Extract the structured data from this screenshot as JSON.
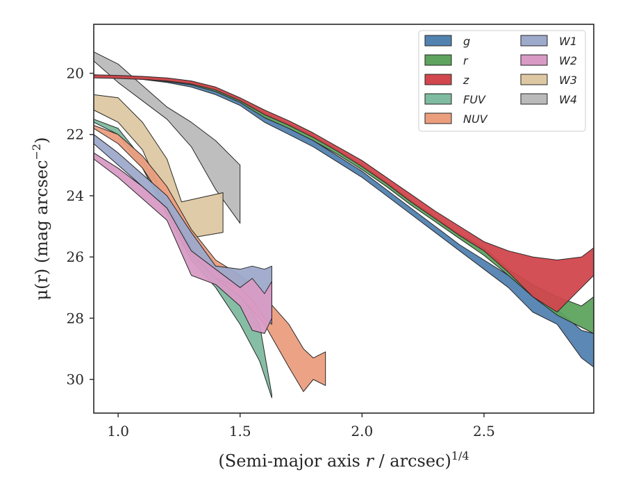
{
  "chart_data": {
    "type": "area",
    "title": "",
    "xlabel": "(Semi-major axis ",
    "xlabel_var": "r",
    "xlabel_mid": " / arcsec)",
    "xlabel_sup": "1/4",
    "ylabel": "μ(r) (mag arcsec",
    "ylabel_sup": "−2",
    "ylabel_end": ")",
    "xlim": [
      0.9,
      2.95
    ],
    "ylim": [
      31.1,
      18.4
    ],
    "y_inverted": true,
    "xticks": [
      1.0,
      1.5,
      2.0,
      2.5
    ],
    "xtick_labels": [
      "1.0",
      "1.5",
      "2.0",
      "2.5"
    ],
    "yticks": [
      20,
      22,
      24,
      26,
      28,
      30
    ],
    "ytick_labels": [
      "20",
      "22",
      "24",
      "26",
      "28",
      "30"
    ],
    "grid": false,
    "legend": {
      "position": "top-right",
      "columns": 2
    },
    "series": [
      {
        "name": "W4",
        "color": "#bababa",
        "upper": [
          [
            0.9,
            19.3
          ],
          [
            1.0,
            19.7
          ],
          [
            1.1,
            20.4
          ],
          [
            1.2,
            21.1
          ],
          [
            1.3,
            21.6
          ],
          [
            1.4,
            22.2
          ],
          [
            1.5,
            23.0
          ]
        ],
        "lower": [
          [
            0.9,
            19.6
          ],
          [
            1.0,
            20.3
          ],
          [
            1.1,
            20.9
          ],
          [
            1.2,
            21.5
          ],
          [
            1.3,
            22.4
          ],
          [
            1.4,
            23.8
          ],
          [
            1.5,
            24.9
          ]
        ]
      },
      {
        "name": "W3",
        "color": "#dec8a3",
        "upper": [
          [
            0.9,
            20.7
          ],
          [
            1.0,
            20.8
          ],
          [
            1.1,
            21.6
          ],
          [
            1.2,
            22.8
          ],
          [
            1.26,
            24.2
          ],
          [
            1.43,
            23.9
          ]
        ],
        "lower": [
          [
            0.9,
            21.2
          ],
          [
            1.0,
            21.6
          ],
          [
            1.1,
            22.5
          ],
          [
            1.2,
            24.3
          ],
          [
            1.28,
            25.4
          ],
          [
            1.43,
            25.2
          ]
        ]
      },
      {
        "name": "FUV",
        "color": "#7fbba0",
        "upper": [
          [
            0.9,
            21.5
          ],
          [
            1.0,
            21.8
          ],
          [
            1.1,
            22.8
          ],
          [
            1.2,
            24.2
          ],
          [
            1.3,
            25.6
          ],
          [
            1.4,
            26.3
          ],
          [
            1.5,
            27.2
          ],
          [
            1.58,
            28.2
          ],
          [
            1.63,
            30.5
          ]
        ],
        "lower": [
          [
            0.9,
            21.6
          ],
          [
            1.0,
            22.0
          ],
          [
            1.1,
            23.1
          ],
          [
            1.2,
            24.6
          ],
          [
            1.3,
            26.1
          ],
          [
            1.4,
            27.0
          ],
          [
            1.5,
            28.2
          ],
          [
            1.58,
            29.4
          ],
          [
            1.63,
            30.6
          ]
        ]
      },
      {
        "name": "NUV",
        "color": "#eb9e7e",
        "upper": [
          [
            0.9,
            21.7
          ],
          [
            1.0,
            22.0
          ],
          [
            1.1,
            22.7
          ],
          [
            1.2,
            23.7
          ],
          [
            1.3,
            25.1
          ],
          [
            1.4,
            26.1
          ],
          [
            1.5,
            26.6
          ],
          [
            1.6,
            27.3
          ],
          [
            1.7,
            28.2
          ],
          [
            1.76,
            29.0
          ],
          [
            1.8,
            29.3
          ],
          [
            1.85,
            29.1
          ]
        ],
        "lower": [
          [
            0.9,
            21.8
          ],
          [
            1.0,
            22.3
          ],
          [
            1.1,
            23.1
          ],
          [
            1.2,
            24.3
          ],
          [
            1.3,
            25.7
          ],
          [
            1.4,
            26.7
          ],
          [
            1.5,
            27.3
          ],
          [
            1.6,
            28.2
          ],
          [
            1.7,
            29.6
          ],
          [
            1.76,
            30.4
          ],
          [
            1.8,
            30.0
          ],
          [
            1.85,
            30.2
          ]
        ]
      },
      {
        "name": "W1",
        "color": "#9eaacb",
        "upper": [
          [
            0.9,
            22.0
          ],
          [
            1.0,
            22.6
          ],
          [
            1.1,
            23.3
          ],
          [
            1.2,
            24.0
          ],
          [
            1.3,
            25.2
          ],
          [
            1.4,
            26.3
          ],
          [
            1.5,
            26.4
          ],
          [
            1.55,
            26.3
          ],
          [
            1.6,
            26.4
          ],
          [
            1.63,
            26.3
          ]
        ],
        "lower": [
          [
            0.9,
            22.3
          ],
          [
            1.0,
            23.0
          ],
          [
            1.1,
            23.7
          ],
          [
            1.2,
            24.4
          ],
          [
            1.3,
            25.9
          ],
          [
            1.4,
            26.7
          ],
          [
            1.5,
            27.0
          ],
          [
            1.55,
            27.4
          ],
          [
            1.6,
            28.0
          ],
          [
            1.63,
            28.2
          ]
        ]
      },
      {
        "name": "W2",
        "color": "#d89bc5",
        "upper": [
          [
            0.9,
            22.6
          ],
          [
            1.0,
            23.1
          ],
          [
            1.1,
            23.7
          ],
          [
            1.2,
            24.4
          ],
          [
            1.3,
            25.8
          ],
          [
            1.4,
            26.4
          ],
          [
            1.5,
            27.0
          ],
          [
            1.55,
            26.7
          ],
          [
            1.6,
            27.2
          ],
          [
            1.63,
            26.8
          ]
        ],
        "lower": [
          [
            0.9,
            22.8
          ],
          [
            1.0,
            23.4
          ],
          [
            1.1,
            24.1
          ],
          [
            1.2,
            24.8
          ],
          [
            1.3,
            26.6
          ],
          [
            1.4,
            26.9
          ],
          [
            1.5,
            27.6
          ],
          [
            1.55,
            28.4
          ],
          [
            1.6,
            28.5
          ],
          [
            1.63,
            28.0
          ]
        ]
      },
      {
        "name": "g",
        "color": "#5282b0",
        "upper": [
          [
            0.9,
            20.05
          ],
          [
            1.0,
            20.1
          ],
          [
            1.1,
            20.15
          ],
          [
            1.2,
            20.2
          ],
          [
            1.3,
            20.3
          ],
          [
            1.4,
            20.55
          ],
          [
            1.5,
            20.9
          ],
          [
            1.6,
            21.4
          ],
          [
            1.7,
            21.8
          ],
          [
            1.8,
            22.2
          ],
          [
            1.9,
            22.7
          ],
          [
            2.0,
            23.2
          ],
          [
            2.1,
            23.8
          ],
          [
            2.2,
            24.4
          ],
          [
            2.3,
            25.0
          ],
          [
            2.4,
            25.6
          ],
          [
            2.5,
            26.1
          ],
          [
            2.6,
            26.6
          ],
          [
            2.7,
            27.2
          ],
          [
            2.8,
            27.7
          ],
          [
            2.9,
            28.4
          ],
          [
            2.95,
            28.5
          ]
        ],
        "lower": [
          [
            0.9,
            20.1
          ],
          [
            1.0,
            20.15
          ],
          [
            1.1,
            20.2
          ],
          [
            1.2,
            20.3
          ],
          [
            1.3,
            20.45
          ],
          [
            1.4,
            20.7
          ],
          [
            1.5,
            21.05
          ],
          [
            1.6,
            21.6
          ],
          [
            1.7,
            22.0
          ],
          [
            1.8,
            22.4
          ],
          [
            1.9,
            22.9
          ],
          [
            2.0,
            23.4
          ],
          [
            2.1,
            24.0
          ],
          [
            2.2,
            24.6
          ],
          [
            2.3,
            25.2
          ],
          [
            2.4,
            25.8
          ],
          [
            2.5,
            26.4
          ],
          [
            2.6,
            27.0
          ],
          [
            2.7,
            27.8
          ],
          [
            2.8,
            28.2
          ],
          [
            2.9,
            29.3
          ],
          [
            2.95,
            29.6
          ]
        ]
      },
      {
        "name": "r",
        "color": "#5ea35e",
        "upper": [
          [
            0.9,
            20.05
          ],
          [
            1.0,
            20.08
          ],
          [
            1.1,
            20.12
          ],
          [
            1.2,
            20.2
          ],
          [
            1.3,
            20.28
          ],
          [
            1.4,
            20.5
          ],
          [
            1.5,
            20.85
          ],
          [
            1.6,
            21.3
          ],
          [
            1.7,
            21.65
          ],
          [
            1.8,
            22.05
          ],
          [
            1.9,
            22.5
          ],
          [
            2.0,
            23.0
          ],
          [
            2.1,
            23.55
          ],
          [
            2.2,
            24.15
          ],
          [
            2.3,
            24.7
          ],
          [
            2.4,
            25.25
          ],
          [
            2.5,
            25.7
          ],
          [
            2.6,
            26.4
          ],
          [
            2.7,
            26.9
          ],
          [
            2.8,
            27.3
          ],
          [
            2.9,
            27.6
          ],
          [
            2.95,
            27.3
          ]
        ],
        "lower": [
          [
            0.9,
            20.1
          ],
          [
            1.0,
            20.12
          ],
          [
            1.1,
            20.18
          ],
          [
            1.2,
            20.27
          ],
          [
            1.3,
            20.38
          ],
          [
            1.4,
            20.6
          ],
          [
            1.5,
            20.95
          ],
          [
            1.6,
            21.45
          ],
          [
            1.7,
            21.8
          ],
          [
            1.8,
            22.2
          ],
          [
            1.9,
            22.65
          ],
          [
            2.0,
            23.15
          ],
          [
            2.1,
            23.7
          ],
          [
            2.2,
            24.3
          ],
          [
            2.3,
            24.85
          ],
          [
            2.4,
            25.4
          ],
          [
            2.5,
            25.95
          ],
          [
            2.6,
            26.6
          ],
          [
            2.7,
            27.3
          ],
          [
            2.8,
            27.9
          ],
          [
            2.9,
            28.3
          ],
          [
            2.95,
            28.5
          ]
        ]
      },
      {
        "name": "z",
        "color": "#d1474d",
        "upper": [
          [
            0.9,
            20.05
          ],
          [
            1.0,
            20.07
          ],
          [
            1.1,
            20.1
          ],
          [
            1.2,
            20.15
          ],
          [
            1.3,
            20.25
          ],
          [
            1.4,
            20.45
          ],
          [
            1.5,
            20.8
          ],
          [
            1.6,
            21.2
          ],
          [
            1.7,
            21.55
          ],
          [
            1.8,
            21.95
          ],
          [
            1.9,
            22.4
          ],
          [
            2.0,
            22.85
          ],
          [
            2.1,
            23.4
          ],
          [
            2.2,
            23.95
          ],
          [
            2.3,
            24.5
          ],
          [
            2.4,
            25.0
          ],
          [
            2.5,
            25.5
          ],
          [
            2.6,
            25.8
          ],
          [
            2.7,
            26.0
          ],
          [
            2.8,
            26.1
          ],
          [
            2.9,
            26.0
          ],
          [
            2.95,
            25.7
          ]
        ],
        "lower": [
          [
            0.9,
            20.15
          ],
          [
            1.0,
            20.17
          ],
          [
            1.1,
            20.2
          ],
          [
            1.2,
            20.25
          ],
          [
            1.3,
            20.35
          ],
          [
            1.4,
            20.55
          ],
          [
            1.5,
            20.9
          ],
          [
            1.6,
            21.35
          ],
          [
            1.7,
            21.7
          ],
          [
            1.8,
            22.1
          ],
          [
            1.9,
            22.55
          ],
          [
            2.0,
            23.05
          ],
          [
            2.1,
            23.6
          ],
          [
            2.2,
            24.2
          ],
          [
            2.3,
            24.75
          ],
          [
            2.4,
            25.3
          ],
          [
            2.5,
            25.8
          ],
          [
            2.6,
            26.5
          ],
          [
            2.7,
            27.3
          ],
          [
            2.8,
            27.8
          ],
          [
            2.9,
            27.0
          ],
          [
            2.95,
            26.6
          ]
        ]
      }
    ],
    "legend_order": [
      "g",
      "r",
      "z",
      "FUV",
      "NUV",
      "W1",
      "W2",
      "W3",
      "W4"
    ]
  }
}
